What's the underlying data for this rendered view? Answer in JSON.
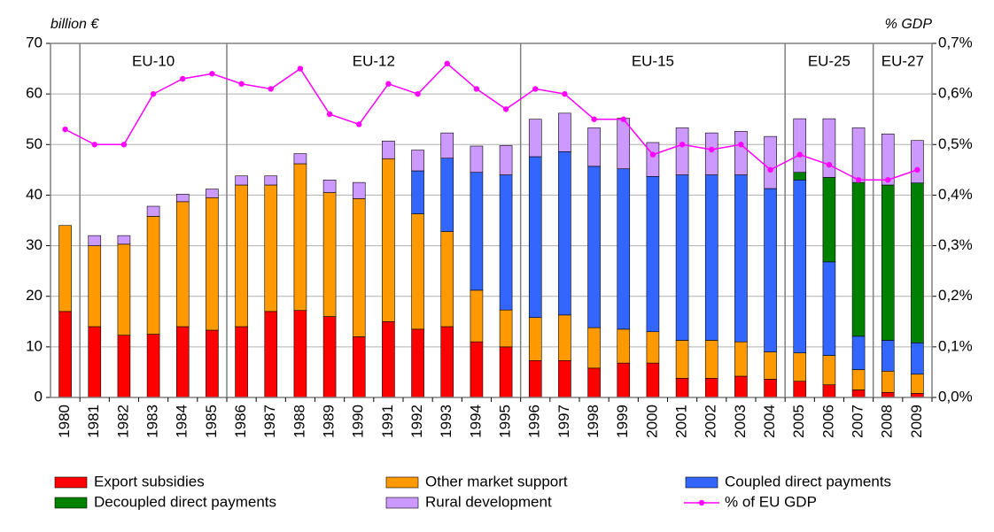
{
  "chart_data": {
    "type": "bar",
    "stacked": true,
    "y_label": "billion €",
    "y2_label": "% GDP",
    "categories": [
      "1980",
      "1981",
      "1982",
      "1983",
      "1984",
      "1985",
      "1986",
      "1987",
      "1988",
      "1989",
      "1990",
      "1991",
      "1992",
      "1993",
      "1994",
      "1995",
      "1996",
      "1997",
      "1998",
      "1999",
      "2000",
      "2001",
      "2002",
      "2003",
      "2004",
      "2005",
      "2006",
      "2007",
      "2008",
      "2009"
    ],
    "series": [
      {
        "name": "Export subsidies",
        "color": "#ff0000",
        "values": [
          17,
          14,
          12.3,
          12.5,
          14,
          13.3,
          14,
          17,
          17.2,
          16,
          12,
          15,
          13.5,
          14,
          11,
          10,
          7.3,
          7.3,
          5.8,
          6.8,
          6.8,
          3.8,
          3.8,
          4.2,
          3.6,
          3.2,
          2.5,
          1.5,
          1,
          0.8
        ]
      },
      {
        "name": "Other market support",
        "color": "#ff9900",
        "values": [
          17,
          16,
          18,
          23.3,
          24.7,
          26.2,
          28,
          25,
          29,
          24.5,
          27.3,
          32.2,
          22.8,
          18.8,
          10.2,
          7.3,
          8.5,
          9,
          8,
          6.7,
          6.2,
          7.5,
          7.5,
          6.8,
          5.4,
          5.6,
          5.8,
          4,
          4.2,
          3.8
        ]
      },
      {
        "name": "Coupled direct payments",
        "color": "#3366ff",
        "values": [
          0,
          0,
          0,
          0,
          0,
          0,
          0,
          0,
          0,
          0,
          0,
          0,
          8.5,
          14.5,
          23.3,
          26.7,
          31.8,
          32.3,
          31.9,
          31.7,
          30.7,
          32.7,
          32.7,
          33,
          32.3,
          34.2,
          18.5,
          6.6,
          6.1,
          6.2
        ]
      },
      {
        "name": "Decoupled direct payments",
        "color": "#008000",
        "values": [
          0,
          0,
          0,
          0,
          0,
          0,
          0,
          0,
          0,
          0,
          0,
          0,
          0,
          0,
          0,
          0,
          0,
          0,
          0,
          0,
          0,
          0,
          0,
          0,
          0,
          1.5,
          16.7,
          30.4,
          30.7,
          31.6
        ]
      },
      {
        "name": "Rural development",
        "color": "#cc99ff",
        "values": [
          0,
          2,
          1.7,
          2,
          1.5,
          1.7,
          1.8,
          1.8,
          2,
          2.5,
          3.2,
          3.5,
          4.1,
          5,
          5.2,
          5.8,
          7.4,
          7.6,
          7.6,
          10,
          6.7,
          9.3,
          8.3,
          8.6,
          10.3,
          10.6,
          11.6,
          10.8,
          10.1,
          8.4
        ]
      },
      {
        "name": "% of EU GDP",
        "color": "#ff00ff",
        "type": "line",
        "axis": "y2",
        "values": [
          0.53,
          0.5,
          0.5,
          0.6,
          0.63,
          0.64,
          0.62,
          0.61,
          0.65,
          0.56,
          0.54,
          0.62,
          0.6,
          0.66,
          0.61,
          0.57,
          0.61,
          0.6,
          0.55,
          0.55,
          0.48,
          0.5,
          0.49,
          0.5,
          0.45,
          0.48,
          0.46,
          0.43,
          0.43,
          0.45
        ]
      }
    ],
    "ylim": [
      0,
      70
    ],
    "yticks": [
      0,
      10,
      20,
      30,
      40,
      50,
      60,
      70
    ],
    "y2lim": [
      0,
      0.7
    ],
    "y2ticks": [
      {
        "value": 0,
        "label": "0,0%"
      },
      {
        "value": 0.1,
        "label": "0,1%"
      },
      {
        "value": 0.2,
        "label": "0,2%"
      },
      {
        "value": 0.3,
        "label": "0,3%"
      },
      {
        "value": 0.4,
        "label": "0,4%"
      },
      {
        "value": 0.5,
        "label": "0,5%"
      },
      {
        "value": 0.6,
        "label": "0,6%"
      },
      {
        "value": 0.7,
        "label": "0,7%"
      }
    ],
    "grid": true,
    "eras": [
      {
        "label": "EU-10",
        "start": "1981",
        "end": "1985"
      },
      {
        "label": "EU-12",
        "start": "1986",
        "end": "1995"
      },
      {
        "label": "EU-15",
        "start": "1996",
        "end": "2004"
      },
      {
        "label": "EU-25",
        "start": "2005",
        "end": "2007"
      },
      {
        "label": "EU-27",
        "start": "2008",
        "end": "2009"
      }
    ]
  }
}
